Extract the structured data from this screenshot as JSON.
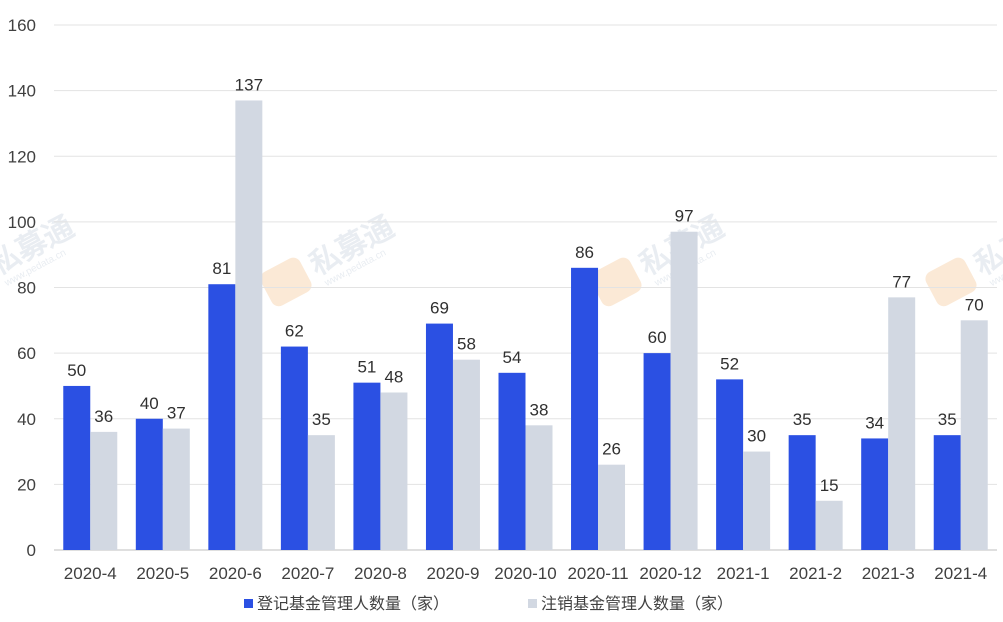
{
  "chart_data": {
    "type": "bar",
    "categories": [
      "2020-4",
      "2020-5",
      "2020-6",
      "2020-7",
      "2020-8",
      "2020-9",
      "2020-10",
      "2020-11",
      "2020-12",
      "2021-1",
      "2021-2",
      "2021-3",
      "2021-4"
    ],
    "series": [
      {
        "name": "登记基金管理人数量（家）",
        "values": [
          50,
          40,
          81,
          62,
          51,
          69,
          54,
          86,
          60,
          52,
          35,
          34,
          35
        ],
        "color": "#2b50e3"
      },
      {
        "name": "注销基金管理人数量（家）",
        "values": [
          36,
          37,
          137,
          35,
          48,
          58,
          38,
          26,
          97,
          30,
          15,
          77,
          70
        ],
        "color": "#d2d8e2"
      }
    ],
    "title": "",
    "xlabel": "",
    "ylabel": "",
    "ylim": [
      0,
      160
    ],
    "yticks": [
      0,
      20,
      40,
      60,
      80,
      100,
      120,
      140,
      160
    ],
    "grid": true,
    "legend": "bottom-center",
    "data_labels": true
  },
  "watermark": {
    "text": "私募通",
    "url": "www.pedata.cn"
  }
}
